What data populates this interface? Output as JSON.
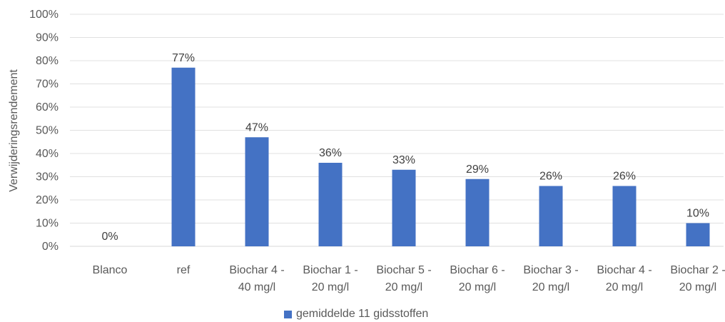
{
  "chart_data": {
    "type": "bar",
    "title": "",
    "xlabel": "",
    "ylabel": "Verwijderingsrendement",
    "ylim": [
      0,
      100
    ],
    "yticks": [
      "0%",
      "10%",
      "20%",
      "30%",
      "40%",
      "50%",
      "60%",
      "70%",
      "80%",
      "90%",
      "100%"
    ],
    "categories": [
      [
        "Blanco"
      ],
      [
        "ref"
      ],
      [
        "Biochar 4 -",
        "40 mg/l"
      ],
      [
        "Biochar 1 -",
        "20 mg/l"
      ],
      [
        "Biochar 5 -",
        "20 mg/l"
      ],
      [
        "Biochar 6 -",
        "20 mg/l"
      ],
      [
        "Biochar 3 -",
        "20 mg/l"
      ],
      [
        "Biochar 4 -",
        "20 mg/l"
      ],
      [
        "Biochar 2 -",
        "20 mg/l"
      ]
    ],
    "series": [
      {
        "name": "gemiddelde 11 gidsstoffen",
        "values": [
          0,
          77,
          47,
          36,
          33,
          29,
          26,
          26,
          10
        ],
        "labels": [
          "0%",
          "77%",
          "47%",
          "36%",
          "33%",
          "29%",
          "26%",
          "26%",
          "10%"
        ],
        "color": "#4472C4"
      }
    ],
    "grid": true,
    "legend_position": "bottom"
  }
}
